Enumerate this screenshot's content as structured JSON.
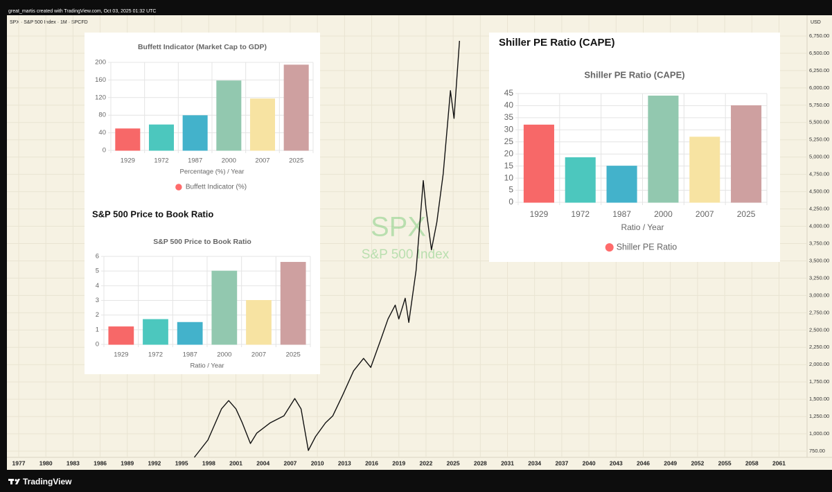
{
  "header": {
    "author_line": "great_martis created with TradingView.com, Oct 03, 2025 01:32 UTC",
    "brand": "TradingView"
  },
  "chart_data": [
    {
      "type": "line",
      "title": "SPX · S&P 500 Index · 1M · SPCFD",
      "axis_unit": "USD",
      "watermark_symbol": "SPX",
      "watermark_name": "S&P 500 Index",
      "color": "#111111",
      "grid": true,
      "x": [
        1996.4,
        1997.9,
        1999.4,
        2000.2,
        2001.0,
        2001.7,
        2002.6,
        2003.3,
        2004.8,
        2006.3,
        2007.5,
        2008.2,
        2009.0,
        2009.8,
        2010.9,
        2011.7,
        2012.8,
        2014.0,
        2015.1,
        2015.9,
        2017.0,
        2017.8,
        2018.6,
        2019.0,
        2019.7,
        2020.1,
        2020.9,
        2021.7,
        2022.0,
        2022.6,
        2023.2,
        2023.9,
        2024.7,
        2025.1,
        2025.7
      ],
      "values": [
        660,
        910,
        1360,
        1480,
        1360,
        1160,
        860,
        1010,
        1160,
        1260,
        1510,
        1360,
        760,
        960,
        1160,
        1260,
        1560,
        1910,
        2090,
        1960,
        2360,
        2660,
        2860,
        2660,
        2960,
        2610,
        3360,
        4660,
        4260,
        3660,
        4060,
        4760,
        5960,
        5560,
        6680
      ],
      "xlim": [
        1975.7,
        2064.1
      ],
      "xticks": [
        1977,
        1980,
        1983,
        1986,
        1989,
        1992,
        1995,
        1998,
        2001,
        2004,
        2007,
        2010,
        2013,
        2016,
        2019,
        2022,
        2025,
        2028,
        2031,
        2034,
        2037,
        2040,
        2043,
        2046,
        2049,
        2052,
        2055,
        2058,
        2061
      ],
      "ylim": [
        660,
        7050
      ],
      "yticks": [
        {
          "value": 6750,
          "label": "6,750.00"
        },
        {
          "value": 6500,
          "label": "6,500.00"
        },
        {
          "value": 6250,
          "label": "6,250.00"
        },
        {
          "value": 6000,
          "label": "6,000.00"
        },
        {
          "value": 5750,
          "label": "5,750.00"
        },
        {
          "value": 5500,
          "label": "5,500.00"
        },
        {
          "value": 5250,
          "label": "5,250.00"
        },
        {
          "value": 5000,
          "label": "5,000.00"
        },
        {
          "value": 4750,
          "label": "4,750.00"
        },
        {
          "value": 4500,
          "label": "4,500.00"
        },
        {
          "value": 4250,
          "label": "4,250.00"
        },
        {
          "value": 4000,
          "label": "4,000.00"
        },
        {
          "value": 3750,
          "label": "3,750.00"
        },
        {
          "value": 3500,
          "label": "3,500.00"
        },
        {
          "value": 3250,
          "label": "3,250.00"
        },
        {
          "value": 3000,
          "label": "3,000.00"
        },
        {
          "value": 2750,
          "label": "2,750.00"
        },
        {
          "value": 2500,
          "label": "2,500.00"
        },
        {
          "value": 2250,
          "label": "2,250.00"
        },
        {
          "value": 2000,
          "label": "2,000.00"
        },
        {
          "value": 1750,
          "label": "1,750.00"
        },
        {
          "value": 1500,
          "label": "1,500.00"
        },
        {
          "value": 1250,
          "label": "1,250.00"
        },
        {
          "value": 1000,
          "label": "1,000.00"
        },
        {
          "value": 750,
          "label": "750.00"
        }
      ]
    },
    {
      "type": "bar",
      "title": "Buffett Indicator (Market Cap to GDP)",
      "x_label": "Percentage (%) / Year",
      "legend_label": "Buffett Indicator (%)",
      "categories": [
        "1929",
        "1972",
        "1987",
        "2000",
        "2007",
        "2025"
      ],
      "values": [
        49,
        58,
        79,
        158,
        117,
        194
      ],
      "colors": [
        "#ff6b6b",
        "#4ecdc4",
        "#45b7d1",
        "#96ceb4",
        "#ffeaa7",
        "#d4a5a5"
      ],
      "ylim": [
        0,
        200
      ],
      "yticks": [
        0,
        40,
        80,
        120,
        160,
        200
      ],
      "grid": true
    },
    {
      "type": "bar",
      "heading": "S&P 500 Price to Book Ratio",
      "title": "S&P 500 Price to Book Ratio",
      "x_label": "Ratio / Year",
      "categories": [
        "1929",
        "1972",
        "1987",
        "2000",
        "2007",
        "2025"
      ],
      "values": [
        1.2,
        1.7,
        1.5,
        5.0,
        3.0,
        5.6
      ],
      "colors": [
        "#ff6b6b",
        "#4ecdc4",
        "#45b7d1",
        "#96ceb4",
        "#ffeaa7",
        "#d4a5a5"
      ],
      "ylim": [
        0,
        6
      ],
      "yticks": [
        0,
        1,
        2,
        3,
        4,
        5,
        6
      ],
      "grid": true
    },
    {
      "type": "bar",
      "heading": "Shiller PE Ratio (CAPE)",
      "title": "Shiller PE Ratio (CAPE)",
      "x_label": "Ratio / Year",
      "legend_label": "Shiller PE Ratio",
      "categories": [
        "1929",
        "1972",
        "1987",
        "2000",
        "2007",
        "2025"
      ],
      "values": [
        32,
        18.5,
        15,
        44,
        27,
        40
      ],
      "colors": [
        "#ff6b6b",
        "#4ecdc4",
        "#45b7d1",
        "#96ceb4",
        "#ffeaa7",
        "#d4a5a5"
      ],
      "ylim": [
        0,
        45
      ],
      "yticks": [
        0,
        5,
        10,
        15,
        20,
        25,
        30,
        35,
        40,
        45
      ],
      "grid": true
    }
  ]
}
